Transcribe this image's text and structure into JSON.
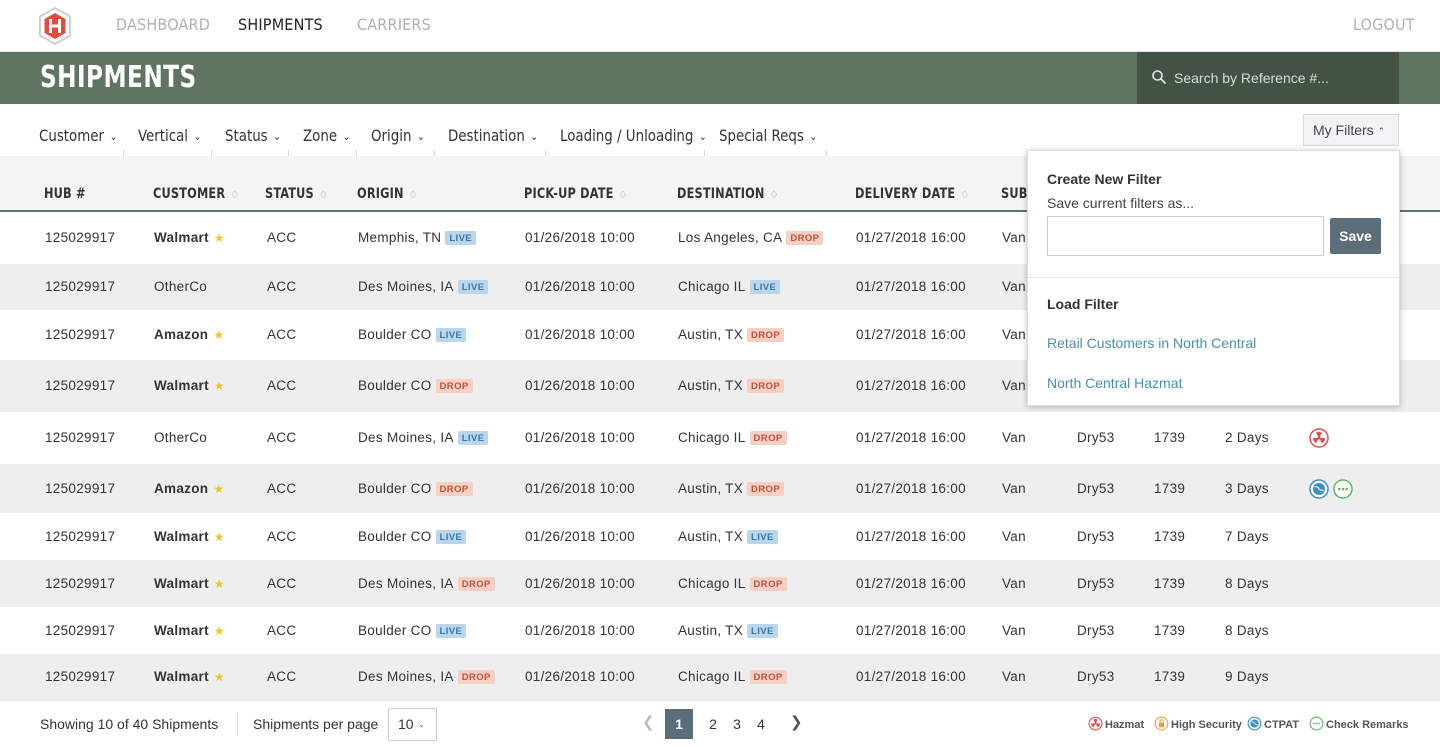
{
  "nav": {
    "dashboard": "DASHBOARD",
    "shipments": "SHIPMENTS",
    "carriers": "CARRIERS",
    "logout": "LOGOUT"
  },
  "header": {
    "title": "SHIPMENTS",
    "search_placeholder": "Search by Reference #..."
  },
  "filters": {
    "items": [
      "Customer",
      "Vertical",
      "Status",
      "Zone",
      "Origin",
      "Destination",
      "Loading / Unloading",
      "Special Reqs"
    ],
    "my_filters_label": "My Filters"
  },
  "table": {
    "columns": [
      "HUB #",
      "CUSTOMER",
      "STATUS",
      "ORIGIN",
      "PICK-UP DATE",
      "DESTINATION",
      "DELIVERY DATE",
      "SUB"
    ],
    "rows": [
      {
        "hub": "125029917",
        "customer": "Walmart",
        "starred": true,
        "status": "ACC",
        "origin": "Memphis, TN",
        "origin_tag": "LIVE",
        "pickup": "01/26/2018 10:00",
        "destination": "Los Angeles, CA",
        "dest_tag": "DROP",
        "delivery": "01/27/2018 16:00",
        "sub": "Van",
        "equip": "",
        "miles": "",
        "transit": "",
        "icons": []
      },
      {
        "hub": "125029917",
        "customer": "OtherCo",
        "starred": false,
        "status": "ACC",
        "origin": "Des Moines, IA",
        "origin_tag": "LIVE",
        "pickup": "01/26/2018 10:00",
        "destination": "Chicago IL",
        "dest_tag": "LIVE",
        "delivery": "01/27/2018 16:00",
        "sub": "Van",
        "equip": "",
        "miles": "",
        "transit": "",
        "icons": []
      },
      {
        "hub": "125029917",
        "customer": "Amazon",
        "starred": true,
        "status": "ACC",
        "origin": "Boulder CO",
        "origin_tag": "LIVE",
        "pickup": "01/26/2018 10:00",
        "destination": "Austin, TX",
        "dest_tag": "DROP",
        "delivery": "01/27/2018 16:00",
        "sub": "Van",
        "equip": "",
        "miles": "",
        "transit": "",
        "icons": []
      },
      {
        "hub": "125029917",
        "customer": "Walmart",
        "starred": true,
        "status": "ACC",
        "origin": "Boulder CO",
        "origin_tag": "DROP",
        "pickup": "01/26/2018 10:00",
        "destination": "Austin, TX",
        "dest_tag": "DROP",
        "delivery": "01/27/2018 16:00",
        "sub": "Van",
        "equip": "",
        "miles": "",
        "transit": "",
        "icons": []
      },
      {
        "hub": "125029917",
        "customer": "OtherCo",
        "starred": false,
        "status": "ACC",
        "origin": "Des Moines, IA",
        "origin_tag": "LIVE",
        "pickup": "01/26/2018 10:00",
        "destination": "Chicago IL",
        "dest_tag": "DROP",
        "delivery": "01/27/2018 16:00",
        "sub": "Van",
        "equip": "Dry53",
        "miles": "1739",
        "transit": "2 Days",
        "icons": [
          "hazmat"
        ]
      },
      {
        "hub": "125029917",
        "customer": "Amazon",
        "starred": true,
        "status": "ACC",
        "origin": "Boulder CO",
        "origin_tag": "DROP",
        "pickup": "01/26/2018 10:00",
        "destination": "Austin, TX",
        "dest_tag": "DROP",
        "delivery": "01/27/2018 16:00",
        "sub": "Van",
        "equip": "Dry53",
        "miles": "1739",
        "transit": "3 Days",
        "icons": [
          "ctpat",
          "remarks"
        ]
      },
      {
        "hub": "125029917",
        "customer": "Walmart",
        "starred": true,
        "status": "ACC",
        "origin": "Boulder CO",
        "origin_tag": "LIVE",
        "pickup": "01/26/2018 10:00",
        "destination": "Austin, TX",
        "dest_tag": "LIVE",
        "delivery": "01/27/2018 16:00",
        "sub": "Van",
        "equip": "Dry53",
        "miles": "1739",
        "transit": "7 Days",
        "icons": []
      },
      {
        "hub": "125029917",
        "customer": "Walmart",
        "starred": true,
        "status": "ACC",
        "origin": "Des Moines, IA",
        "origin_tag": "DROP",
        "pickup": "01/26/2018 10:00",
        "destination": "Chicago IL",
        "dest_tag": "DROP",
        "delivery": "01/27/2018 16:00",
        "sub": "Van",
        "equip": "Dry53",
        "miles": "1739",
        "transit": "8 Days",
        "icons": []
      },
      {
        "hub": "125029917",
        "customer": "Walmart",
        "starred": true,
        "status": "ACC",
        "origin": "Boulder CO",
        "origin_tag": "LIVE",
        "pickup": "01/26/2018 10:00",
        "destination": "Austin, TX",
        "dest_tag": "LIVE",
        "delivery": "01/27/2018 16:00",
        "sub": "Van",
        "equip": "Dry53",
        "miles": "1739",
        "transit": "8 Days",
        "icons": []
      },
      {
        "hub": "125029917",
        "customer": "Walmart",
        "starred": true,
        "status": "ACC",
        "origin": "Des Moines, IA",
        "origin_tag": "DROP",
        "pickup": "01/26/2018 10:00",
        "destination": "Chicago IL",
        "dest_tag": "DROP",
        "delivery": "01/27/2018 16:00",
        "sub": "Van",
        "equip": "Dry53",
        "miles": "1739",
        "transit": "9 Days",
        "icons": []
      }
    ]
  },
  "dropdown": {
    "create_title": "Create New Filter",
    "save_prompt": "Save current filters as...",
    "save_input_value": "",
    "save_button": "Save",
    "load_title": "Load Filter",
    "saved_filters": [
      "Retail Customers in North Central",
      "North Central Hazmat"
    ]
  },
  "footer": {
    "showing": "Showing 10 of 40 Shipments",
    "per_page_label": "Shipments per page",
    "per_page_value": "10",
    "pages": [
      "1",
      "2",
      "3",
      "4"
    ],
    "current_page": "1",
    "legend": [
      "Hazmat",
      "High Security",
      "CTPAT",
      "Check Remarks"
    ]
  },
  "colors": {
    "header_green": "#5f7561",
    "search_bg": "#445145",
    "accent_slate": "#5c6d7a",
    "link_blue": "#4a8fa8",
    "live_bg": "#b9d6ec",
    "drop_bg": "#f7cfc5",
    "star": "#f2c12e",
    "hazmat_red": "#d9534f",
    "security_orange": "#e8a23c",
    "ctpat_blue": "#3e8fc4",
    "remarks_green": "#5cb85c"
  }
}
